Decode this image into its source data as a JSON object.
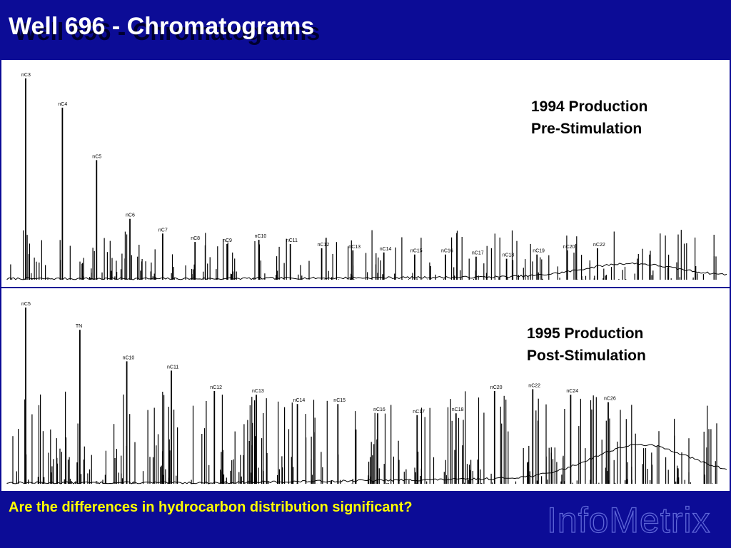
{
  "slide": {
    "title": "Well 696 - Chromatograms",
    "question": "Are the differences in hydrocarbon distribution significant?",
    "logo": "InfoMetrix"
  },
  "chromatograms": {
    "top": {
      "line1": "1994 Production",
      "line2": "Pre-Stimulation",
      "peaks": [
        {
          "label": "nC3",
          "rel": 0.96
        },
        {
          "label": "nC4",
          "rel": 0.82
        },
        {
          "label": "nC5",
          "rel": 0.57
        },
        {
          "label": "nC6",
          "rel": 0.29
        },
        {
          "label": "nC7",
          "rel": 0.22
        },
        {
          "label": "nC8",
          "rel": 0.18
        },
        {
          "label": "nC9",
          "rel": 0.17
        },
        {
          "label": "nC10",
          "rel": 0.19
        },
        {
          "label": "nC11",
          "rel": 0.17
        },
        {
          "label": "nC12",
          "rel": 0.15
        },
        {
          "label": "nC13",
          "rel": 0.14
        },
        {
          "label": "nC14",
          "rel": 0.13
        },
        {
          "label": "nC15",
          "rel": 0.12
        },
        {
          "label": "nC16",
          "rel": 0.12
        },
        {
          "label": "nC17",
          "rel": 0.11
        },
        {
          "label": "nC18",
          "rel": 0.1
        },
        {
          "label": "nC19",
          "rel": 0.12
        },
        {
          "label": "nC20",
          "rel": 0.14
        },
        {
          "label": "nC22",
          "rel": 0.15
        }
      ]
    },
    "bottom": {
      "line1": "1995 Production",
      "line2": "Post-Stimulation",
      "peaks": [
        {
          "label": "nC5",
          "rel": 0.95
        },
        {
          "label": "TN",
          "rel": 0.83
        },
        {
          "label": "nC10",
          "rel": 0.66
        },
        {
          "label": "nC11",
          "rel": 0.61
        },
        {
          "label": "nC12",
          "rel": 0.5
        },
        {
          "label": "nC13",
          "rel": 0.48
        },
        {
          "label": "nC14",
          "rel": 0.43
        },
        {
          "label": "nC15",
          "rel": 0.43
        },
        {
          "label": "nC16",
          "rel": 0.38
        },
        {
          "label": "nC17",
          "rel": 0.37
        },
        {
          "label": "nC18",
          "rel": 0.38
        },
        {
          "label": "nC20",
          "rel": 0.5
        },
        {
          "label": "nC22",
          "rel": 0.51
        },
        {
          "label": "nC24",
          "rel": 0.48
        },
        {
          "label": "nC26",
          "rel": 0.44
        }
      ]
    }
  }
}
